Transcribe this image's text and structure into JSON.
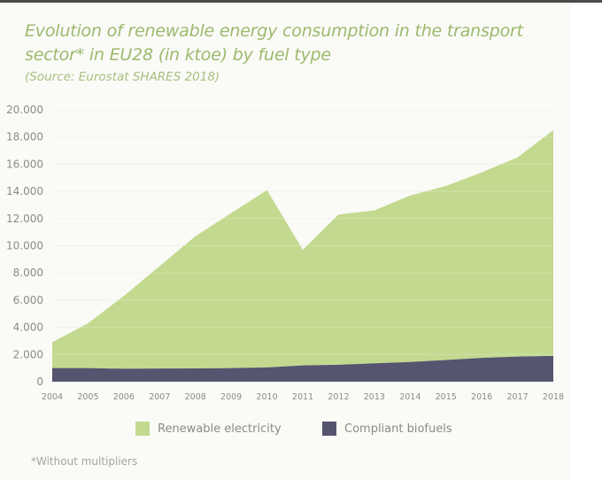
{
  "chart_data": {
    "type": "area",
    "stacked": true,
    "title": "Evolution of renewable energy consumption in the transport sector* in EU28 (in ktoe) by fuel type",
    "subtitle": "(Source: Eurostat SHARES 2018)",
    "xlabel": "",
    "ylabel": "",
    "x": [
      2004,
      2005,
      2006,
      2007,
      2008,
      2009,
      2010,
      2011,
      2012,
      2013,
      2014,
      2015,
      2016,
      2017,
      2018
    ],
    "x_tick_labels": [
      "2004",
      "2005",
      "2006",
      "2007",
      "2008",
      "2009",
      "2010",
      "2011",
      "2012",
      "2013",
      "2014",
      "2015",
      "2016",
      "2017",
      "2018"
    ],
    "ylim": [
      0,
      20000
    ],
    "y_ticks": [
      0,
      2000,
      4000,
      6000,
      8000,
      10000,
      12000,
      14000,
      16000,
      18000,
      20000
    ],
    "y_tick_labels": [
      "0",
      "2.000",
      "4.000",
      "6.000",
      "8.000",
      "10.000",
      "12.000",
      "14.000",
      "16.000",
      "18.000",
      "20.000"
    ],
    "grid": true,
    "legend_position": "bottom",
    "series": [
      {
        "name": "Compliant biofuels",
        "color": "#555570",
        "values": [
          1000,
          1000,
          950,
          970,
          980,
          1000,
          1050,
          1200,
          1250,
          1350,
          1450,
          1600,
          1750,
          1850,
          1900
        ]
      },
      {
        "name": "Renewable electricity",
        "color": "#c3d98f",
        "stacked_top_values": [
          2900,
          4300,
          6300,
          8500,
          10700,
          12400,
          14100,
          9700,
          12300,
          12600,
          13700,
          14400,
          15400,
          16500,
          18500
        ],
        "values": [
          1900,
          3300,
          5350,
          7530,
          9720,
          11400,
          13050,
          8500,
          11050,
          11250,
          12250,
          12800,
          13650,
          14650,
          16600
        ]
      }
    ]
  },
  "footnote": "*Without multipliers",
  "legend": [
    {
      "label": "Renewable electricity",
      "color": "#c3d98f"
    },
    {
      "label": "Compliant biofuels",
      "color": "#555570"
    }
  ]
}
